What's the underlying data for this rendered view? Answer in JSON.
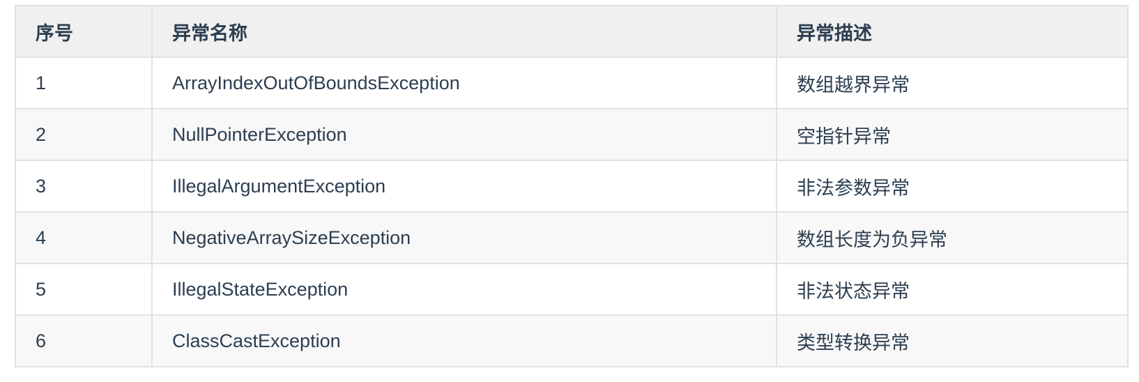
{
  "table": {
    "headers": [
      "序号",
      "异常名称",
      "异常描述"
    ],
    "rows": [
      [
        "1",
        "ArrayIndexOutOfBoundsException",
        "数组越界异常"
      ],
      [
        "2",
        "NullPointerException",
        "空指针异常"
      ],
      [
        "3",
        "IllegalArgumentException",
        "非法参数异常"
      ],
      [
        "4",
        "NegativeArraySizeException",
        "数组长度为负异常"
      ],
      [
        "5",
        "IllegalStateException",
        "非法状态异常"
      ],
      [
        "6",
        "ClassCastException",
        "类型转换异常"
      ]
    ]
  }
}
